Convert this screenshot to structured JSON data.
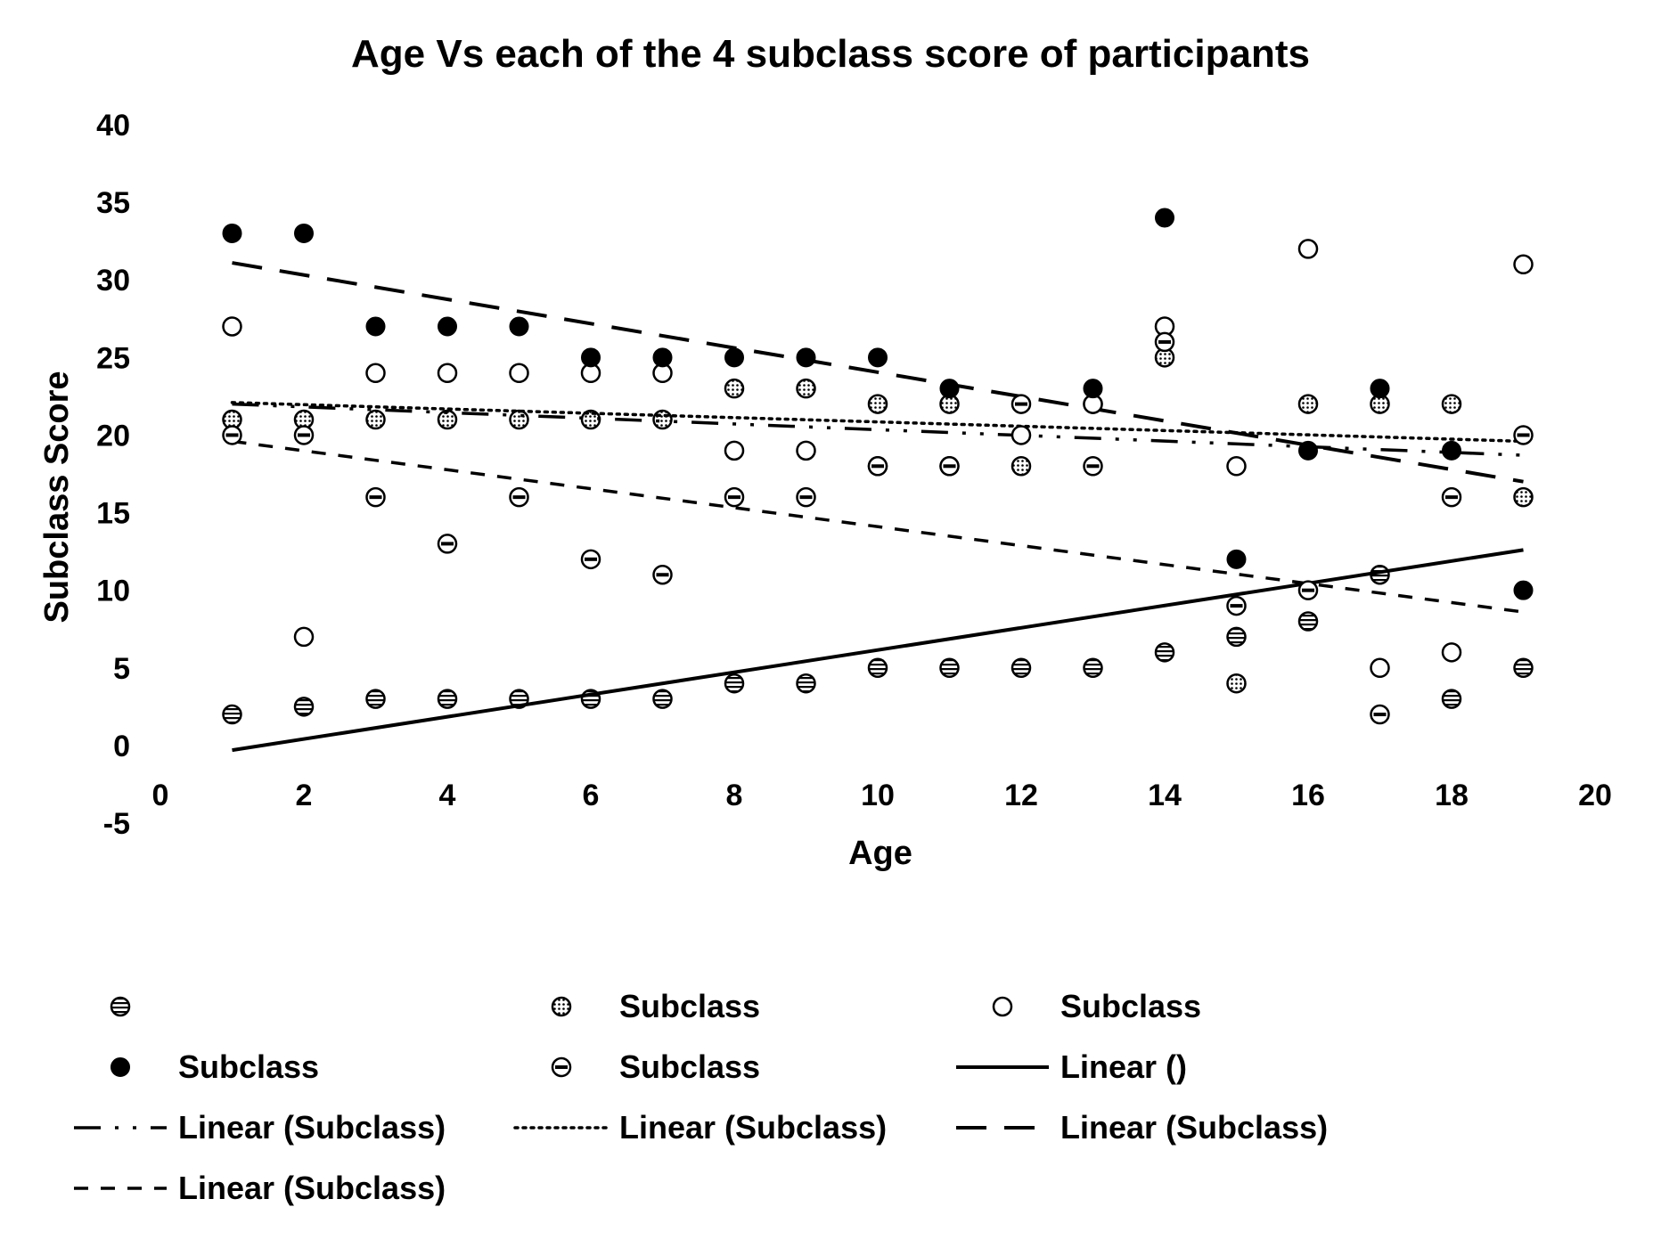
{
  "chart_data": {
    "type": "scatter",
    "title": "Age Vs each of the 4 subclass score of participants",
    "xlabel": "Age",
    "ylabel": "Subclass Score",
    "xlim": [
      0,
      20
    ],
    "ylim": [
      -5,
      40
    ],
    "x_ticks": [
      "0",
      "2",
      "4",
      "6",
      "8",
      "10",
      "12",
      "14",
      "16",
      "18",
      "20"
    ],
    "y_ticks": [
      "40",
      "35",
      "30",
      "25",
      "20",
      "15",
      "10",
      "5",
      "0",
      "-5"
    ],
    "grid": false,
    "series": [
      {
        "name": "",
        "marker": "horizontal-lines",
        "x": [
          1,
          2,
          3,
          4,
          5,
          6,
          7,
          8,
          9,
          10,
          11,
          12,
          13,
          14,
          15,
          16,
          17,
          18,
          19
        ],
        "y": [
          2,
          2.5,
          3,
          3,
          3,
          3,
          3,
          4,
          4,
          5,
          5,
          5,
          5,
          6,
          7,
          8,
          11,
          3,
          5
        ]
      },
      {
        "name": "Subclass",
        "marker": "dotted",
        "x": [
          1,
          2,
          3,
          4,
          5,
          6,
          7,
          8,
          9,
          10,
          11,
          12,
          13,
          14,
          15,
          16,
          17,
          18,
          19
        ],
        "y": [
          21,
          21,
          21,
          21,
          21,
          21,
          21,
          23,
          23,
          22,
          22,
          18,
          22,
          25,
          4,
          22,
          22,
          22,
          16
        ]
      },
      {
        "name": "Subclass",
        "marker": "open",
        "x": [
          1,
          2,
          3,
          4,
          5,
          6,
          7,
          8,
          9,
          10,
          11,
          12,
          13,
          14,
          15,
          16,
          17,
          18,
          19
        ],
        "y": [
          27,
          7,
          24,
          24,
          24,
          24,
          24,
          19,
          19,
          18,
          18,
          20,
          22,
          27,
          18,
          32,
          5,
          6,
          31
        ]
      },
      {
        "name": "Subclass",
        "marker": "filled",
        "x": [
          1,
          2,
          3,
          4,
          5,
          6,
          7,
          8,
          9,
          10,
          11,
          12,
          13,
          14,
          15,
          16,
          17,
          18,
          19
        ],
        "y": [
          33,
          33,
          27,
          27,
          27,
          25,
          25,
          25,
          25,
          25,
          23,
          22,
          23,
          34,
          12,
          19,
          23,
          19,
          10
        ]
      },
      {
        "name": "Subclass",
        "marker": "single-bar",
        "x": [
          1,
          2,
          3,
          4,
          5,
          6,
          7,
          8,
          9,
          10,
          11,
          12,
          13,
          14,
          15,
          16,
          17,
          18,
          19
        ],
        "y": [
          20,
          20,
          16,
          13,
          16,
          12,
          11,
          16,
          16,
          18,
          18,
          22,
          18,
          26,
          9,
          10,
          2,
          16,
          20
        ]
      }
    ],
    "trendlines": [
      {
        "name": "Linear ()",
        "style": "solid",
        "x": [
          1,
          19
        ],
        "y": [
          -0.3,
          12.6
        ]
      },
      {
        "name": "Linear (Subclass)",
        "style": "long-dash-dot",
        "x": [
          1,
          19
        ],
        "y": [
          22.0,
          18.7
        ]
      },
      {
        "name": "Linear (Subclass)",
        "style": "dotted",
        "x": [
          1,
          19
        ],
        "y": [
          22.1,
          19.6
        ]
      },
      {
        "name": "Linear (Subclass)",
        "style": "long-dash",
        "x": [
          1,
          19
        ],
        "y": [
          31.1,
          17.0
        ]
      },
      {
        "name": "Linear (Subclass)",
        "style": "short-dash",
        "x": [
          1,
          19
        ],
        "y": [
          19.6,
          8.6
        ]
      }
    ],
    "legend": {
      "position": "bottom",
      "entries": [
        {
          "kind": "marker",
          "marker": "horizontal-lines",
          "label": ""
        },
        {
          "kind": "marker",
          "marker": "dotted",
          "label": "Subclass"
        },
        {
          "kind": "marker",
          "marker": "open",
          "label": "Subclass"
        },
        {
          "kind": "marker",
          "marker": "filled",
          "label": "Subclass"
        },
        {
          "kind": "marker",
          "marker": "single-bar",
          "label": "Subclass"
        },
        {
          "kind": "line",
          "style": "solid",
          "label": "Linear ()"
        },
        {
          "kind": "line",
          "style": "long-dash-dot",
          "label": "Linear (Subclass)"
        },
        {
          "kind": "line",
          "style": "dotted",
          "label": "Linear (Subclass)"
        },
        {
          "kind": "line",
          "style": "long-dash",
          "label": "Linear (Subclass)"
        },
        {
          "kind": "line",
          "style": "short-dash",
          "label": "Linear (Subclass)"
        }
      ]
    }
  }
}
